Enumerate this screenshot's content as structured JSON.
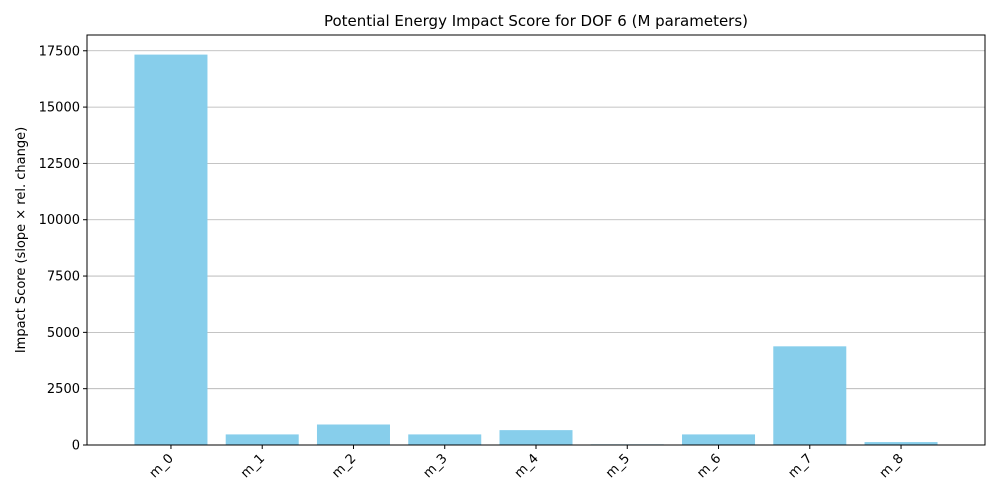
{
  "chart_data": {
    "type": "bar",
    "title": "Potential Energy Impact Score for DOF 6 (M parameters)",
    "xlabel": "",
    "ylabel": "Impact Score (slope × rel. change)",
    "categories": [
      "m_0",
      "m_1",
      "m_2",
      "m_3",
      "m_4",
      "m_5",
      "m_6",
      "m_7",
      "m_8"
    ],
    "values": [
      17330,
      470,
      910,
      470,
      660,
      30,
      470,
      4380,
      130
    ],
    "ylim": [
      0,
      18200
    ],
    "yticks": [
      0,
      2500,
      5000,
      7500,
      10000,
      12500,
      15000,
      17500
    ],
    "grid": "y",
    "bar_color": "#87ceeb",
    "grid_color": "#b0b0b0"
  }
}
